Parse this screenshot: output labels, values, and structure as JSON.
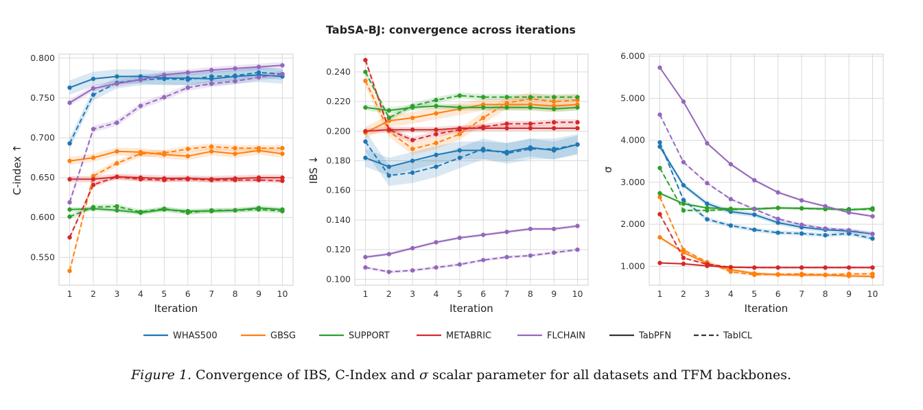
{
  "title": "TabSA-BJ: convergence across iterations",
  "caption": {
    "prefix": "Figure 1.",
    "text_before_sigma": " Convergence of IBS, C-Index and ",
    "sigma": "σ",
    "text_after_sigma": " scalar parameter for all datasets and TFM backbones."
  },
  "colors": {
    "WHAS500": "#1f77b4",
    "GBSG": "#ff7f0e",
    "SUPPORT": "#2ca02c",
    "METABRIC": "#d62728",
    "FLCHAIN": "#9467bd",
    "backbone": "#333333"
  },
  "legend": {
    "datasets": [
      "WHAS500",
      "GBSG",
      "SUPPORT",
      "METABRIC",
      "FLCHAIN"
    ],
    "backbones": [
      {
        "name": "TabPFN",
        "style": "solid"
      },
      {
        "name": "TabICL",
        "style": "dashed"
      }
    ]
  },
  "chart_data": [
    {
      "type": "line",
      "xlabel": "Iteration",
      "ylabel": "C-index ↑",
      "x": [
        1,
        2,
        3,
        4,
        5,
        6,
        7,
        8,
        9,
        10
      ],
      "xticks": [
        "1",
        "2",
        "3",
        "4",
        "5",
        "6",
        "7",
        "8",
        "9",
        "10"
      ],
      "ylim": [
        0.515,
        0.805
      ],
      "yticks": [
        "0.550",
        "0.600",
        "0.650",
        "0.700",
        "0.750",
        "0.800"
      ],
      "grid": true,
      "series": [
        {
          "dataset": "WHAS500",
          "backbone": "TabPFN",
          "values": [
            0.763,
            0.774,
            0.777,
            0.777,
            0.775,
            0.775,
            0.774,
            0.777,
            0.779,
            0.777
          ],
          "band": 0.009
        },
        {
          "dataset": "WHAS500",
          "backbone": "TabICL",
          "values": [
            0.693,
            0.754,
            0.769,
            0.773,
            0.774,
            0.773,
            0.777,
            0.778,
            0.782,
            0.78
          ],
          "band": 0.007
        },
        {
          "dataset": "GBSG",
          "backbone": "TabPFN",
          "values": [
            0.671,
            0.675,
            0.683,
            0.682,
            0.679,
            0.677,
            0.683,
            0.68,
            0.684,
            0.68
          ],
          "band": 0.005
        },
        {
          "dataset": "GBSG",
          "backbone": "TabICL",
          "values": [
            0.533,
            0.652,
            0.668,
            0.68,
            0.681,
            0.686,
            0.689,
            0.687,
            0.687,
            0.687
          ],
          "band": 0.004
        },
        {
          "dataset": "SUPPORT",
          "backbone": "TabPFN",
          "values": [
            0.61,
            0.611,
            0.609,
            0.606,
            0.61,
            0.608,
            0.608,
            0.609,
            0.612,
            0.61
          ],
          "band": 0.003
        },
        {
          "dataset": "SUPPORT",
          "backbone": "TabICL",
          "values": [
            0.601,
            0.613,
            0.614,
            0.607,
            0.611,
            0.606,
            0.609,
            0.609,
            0.61,
            0.608
          ],
          "band": 0.003
        },
        {
          "dataset": "METABRIC",
          "backbone": "TabPFN",
          "values": [
            0.648,
            0.648,
            0.651,
            0.65,
            0.649,
            0.649,
            0.648,
            0.649,
            0.65,
            0.65
          ],
          "band": 0.004
        },
        {
          "dataset": "METABRIC",
          "backbone": "TabICL",
          "values": [
            0.575,
            0.641,
            0.651,
            0.648,
            0.647,
            0.648,
            0.647,
            0.647,
            0.647,
            0.646
          ],
          "band": 0.003
        },
        {
          "dataset": "FLCHAIN",
          "backbone": "TabPFN",
          "values": [
            0.744,
            0.762,
            0.768,
            0.773,
            0.779,
            0.782,
            0.785,
            0.787,
            0.789,
            0.791
          ],
          "band": 0.004
        },
        {
          "dataset": "FLCHAIN",
          "backbone": "TabICL",
          "values": [
            0.619,
            0.711,
            0.719,
            0.74,
            0.751,
            0.763,
            0.768,
            0.771,
            0.776,
            0.78
          ],
          "band": 0.004
        }
      ]
    },
    {
      "type": "line",
      "xlabel": "Iteration",
      "ylabel": "IBS ↓",
      "x": [
        1,
        2,
        3,
        4,
        5,
        6,
        7,
        8,
        9,
        10
      ],
      "xticks": [
        "1",
        "2",
        "3",
        "4",
        "5",
        "6",
        "7",
        "8",
        "9",
        "10"
      ],
      "ylim": [
        0.096,
        0.252
      ],
      "yticks": [
        "0.100",
        "0.120",
        "0.140",
        "0.160",
        "0.180",
        "0.200",
        "0.220",
        "0.240"
      ],
      "grid": true,
      "series": [
        {
          "dataset": "WHAS500",
          "backbone": "TabPFN",
          "values": [
            0.182,
            0.176,
            0.18,
            0.184,
            0.187,
            0.187,
            0.186,
            0.189,
            0.187,
            0.191
          ],
          "band": 0.006
        },
        {
          "dataset": "WHAS500",
          "backbone": "TabICL",
          "values": [
            0.193,
            0.17,
            0.172,
            0.176,
            0.182,
            0.188,
            0.185,
            0.188,
            0.188,
            0.191
          ],
          "band": 0.007
        },
        {
          "dataset": "GBSG",
          "backbone": "TabPFN",
          "values": [
            0.199,
            0.207,
            0.209,
            0.212,
            0.215,
            0.218,
            0.218,
            0.218,
            0.217,
            0.218
          ],
          "band": 0.004
        },
        {
          "dataset": "GBSG",
          "backbone": "TabICL",
          "values": [
            0.234,
            0.2,
            0.188,
            0.192,
            0.198,
            0.209,
            0.219,
            0.222,
            0.22,
            0.221
          ],
          "band": 0.004
        },
        {
          "dataset": "SUPPORT",
          "backbone": "TabPFN",
          "values": [
            0.216,
            0.214,
            0.216,
            0.217,
            0.216,
            0.216,
            0.216,
            0.216,
            0.215,
            0.216
          ],
          "band": 0.002
        },
        {
          "dataset": "SUPPORT",
          "backbone": "TabICL",
          "values": [
            0.24,
            0.209,
            0.217,
            0.221,
            0.224,
            0.223,
            0.223,
            0.223,
            0.223,
            0.223
          ],
          "band": 0.002
        },
        {
          "dataset": "METABRIC",
          "backbone": "TabPFN",
          "values": [
            0.2,
            0.201,
            0.201,
            0.201,
            0.202,
            0.202,
            0.202,
            0.202,
            0.202,
            0.202
          ],
          "band": 0.002
        },
        {
          "dataset": "METABRIC",
          "backbone": "TabICL",
          "values": [
            0.248,
            0.201,
            0.194,
            0.198,
            0.201,
            0.203,
            0.205,
            0.205,
            0.206,
            0.206
          ],
          "band": 0.002
        },
        {
          "dataset": "FLCHAIN",
          "backbone": "TabPFN",
          "values": [
            0.115,
            0.117,
            0.121,
            0.125,
            0.128,
            0.13,
            0.132,
            0.134,
            0.134,
            0.136
          ],
          "band": 0.001
        },
        {
          "dataset": "FLCHAIN",
          "backbone": "TabICL",
          "values": [
            0.108,
            0.105,
            0.106,
            0.108,
            0.11,
            0.113,
            0.115,
            0.116,
            0.118,
            0.12
          ],
          "band": 0.001
        }
      ]
    },
    {
      "type": "line",
      "xlabel": "Iteration",
      "ylabel": "σ",
      "x": [
        1,
        2,
        3,
        4,
        5,
        6,
        7,
        8,
        9,
        10
      ],
      "xticks": [
        "1",
        "2",
        "3",
        "4",
        "5",
        "6",
        "7",
        "8",
        "9",
        "10"
      ],
      "ylim": [
        0.55,
        6.05
      ],
      "yticks": [
        "1.000",
        "2.000",
        "3.000",
        "4.000",
        "5.000",
        "6.000"
      ],
      "grid": true,
      "series": [
        {
          "dataset": "WHAS500",
          "backbone": "TabPFN",
          "values": [
            3.85,
            2.93,
            2.49,
            2.3,
            2.23,
            2.04,
            1.93,
            1.87,
            1.84,
            1.77
          ],
          "band": 0.06
        },
        {
          "dataset": "WHAS500",
          "backbone": "TabICL",
          "values": [
            3.95,
            2.58,
            2.12,
            1.97,
            1.87,
            1.8,
            1.78,
            1.74,
            1.78,
            1.66
          ],
          "band": 0.05
        },
        {
          "dataset": "GBSG",
          "backbone": "TabPFN",
          "values": [
            1.69,
            1.33,
            1.07,
            0.92,
            0.83,
            0.8,
            0.79,
            0.79,
            0.77,
            0.76
          ],
          "band": 0.04
        },
        {
          "dataset": "GBSG",
          "backbone": "TabICL",
          "values": [
            2.65,
            1.39,
            1.1,
            0.87,
            0.8,
            0.81,
            0.82,
            0.8,
            0.82,
            0.82
          ],
          "band": 0.03
        },
        {
          "dataset": "SUPPORT",
          "backbone": "TabPFN",
          "values": [
            2.74,
            2.49,
            2.39,
            2.37,
            2.36,
            2.39,
            2.38,
            2.37,
            2.34,
            2.38
          ],
          "band": 0.03
        },
        {
          "dataset": "SUPPORT",
          "backbone": "TabICL",
          "values": [
            3.34,
            2.33,
            2.33,
            2.35,
            2.37,
            2.39,
            2.38,
            2.36,
            2.36,
            2.35
          ],
          "band": 0.03
        },
        {
          "dataset": "METABRIC",
          "backbone": "TabPFN",
          "values": [
            1.08,
            1.06,
            1.01,
            0.98,
            0.97,
            0.97,
            0.97,
            0.97,
            0.97,
            0.97
          ],
          "band": 0.02
        },
        {
          "dataset": "METABRIC",
          "backbone": "TabICL",
          "values": [
            2.24,
            1.2,
            1.05,
            0.98,
            0.97,
            0.97,
            0.97,
            0.97,
            0.97,
            0.97
          ],
          "band": 0.02
        },
        {
          "dataset": "FLCHAIN",
          "backbone": "TabPFN",
          "values": [
            5.73,
            4.92,
            3.93,
            3.43,
            3.05,
            2.76,
            2.57,
            2.43,
            2.28,
            2.19
          ],
          "band": 0.03
        },
        {
          "dataset": "FLCHAIN",
          "backbone": "TabICL",
          "values": [
            4.61,
            3.48,
            2.98,
            2.6,
            2.36,
            2.13,
            1.99,
            1.9,
            1.86,
            1.77
          ],
          "band": 0.03
        }
      ]
    }
  ]
}
